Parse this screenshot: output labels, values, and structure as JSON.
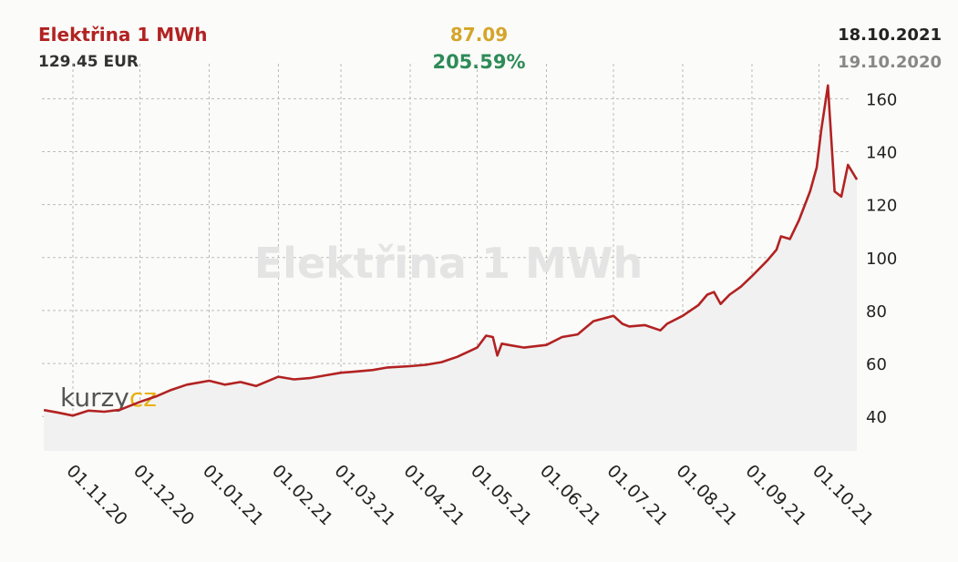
{
  "header": {
    "title": "Elektřina 1 MWh",
    "price": "129.45 EUR",
    "change_abs": "87.09",
    "change_pct": "205.59%",
    "date_current": "18.10.2021",
    "date_previous": "19.10.2020"
  },
  "watermark": "Elektřina 1 MWh",
  "logo": {
    "part1": "kurzy",
    "part2": "cz"
  },
  "colors": {
    "line": "#b22222",
    "title": "#b22222",
    "change_abs": "#d4a52a",
    "change_pct": "#2e8b57",
    "area": "#f1f1f1",
    "grid": "#bbbbbb"
  },
  "chart_data": {
    "type": "area",
    "title": "Elektřina 1 MWh",
    "ylim": [
      27,
      167
    ],
    "y_ticks": [
      40,
      60,
      80,
      100,
      120,
      140,
      160
    ],
    "x_tick_labels": [
      "01.11.20",
      "01.12.20",
      "01.01.21",
      "01.02.21",
      "01.03.21",
      "01.04.21",
      "01.05.21",
      "01.06.21",
      "01.07.21",
      "01.08.21",
      "01.09.21",
      "01.10.21"
    ],
    "grid": true,
    "series": [
      {
        "x": [
          "19.10.2020",
          "25.10.2020",
          "01.11.2020",
          "08.11.2020",
          "15.11.2020",
          "22.11.2020",
          "01.12.2020",
          "08.12.2020",
          "15.12.2020",
          "22.12.2020",
          "01.01.2021",
          "08.01.2021",
          "15.01.2021",
          "22.01.2021",
          "01.02.2021",
          "08.02.2021",
          "15.02.2021",
          "22.02.2021",
          "01.03.2021",
          "08.03.2021",
          "15.03.2021",
          "22.03.2021",
          "01.04.2021",
          "08.04.2021",
          "15.04.2021",
          "22.04.2021",
          "01.05.2021",
          "05.05.2021",
          "08.05.2021",
          "10.05.2021",
          "12.05.2021",
          "15.05.2021",
          "22.05.2021",
          "01.06.2021",
          "08.06.2021",
          "15.06.2021",
          "22.06.2021",
          "01.07.2021",
          "05.07.2021",
          "08.07.2021",
          "15.07.2021",
          "22.07.2021",
          "25.07.2021",
          "01.08.2021",
          "08.08.2021",
          "12.08.2021",
          "15.08.2021",
          "18.08.2021",
          "22.08.2021",
          "27.08.2021",
          "01.09.2021",
          "08.09.2021",
          "12.09.2021",
          "14.09.2021",
          "18.09.2021",
          "22.09.2021",
          "27.09.2021",
          "30.09.2021",
          "02.10.2021",
          "05.10.2021",
          "08.10.2021",
          "11.10.2021",
          "14.10.2021",
          "18.10.2021"
        ],
        "values": [
          42.4,
          41.5,
          40.3,
          42.2,
          41.8,
          42.5,
          45.5,
          47.5,
          50,
          52,
          53.5,
          52,
          53,
          51.5,
          55,
          54,
          54.5,
          55.5,
          56.5,
          57,
          57.5,
          58.5,
          59,
          59.5,
          60.5,
          62.5,
          66,
          70.5,
          70,
          63,
          67.5,
          67,
          66,
          67,
          70,
          71,
          76,
          78,
          75,
          74,
          74.5,
          72.5,
          75,
          78,
          82,
          86,
          87,
          82.5,
          86,
          89,
          93,
          99,
          103,
          108,
          107,
          114,
          125,
          134,
          148,
          165,
          125,
          123,
          135,
          129.45
        ]
      }
    ]
  }
}
